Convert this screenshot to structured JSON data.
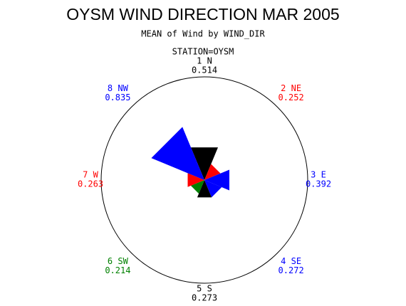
{
  "chart_data": {
    "type": "windrose",
    "title": "OYSM WIND DIRECTION MAR 2005",
    "subtitle": "MEAN of Wind by WIND_DIR",
    "station": "STATION=OYSM",
    "categories": [
      "1 N",
      "2 NE",
      "3 E",
      "4 SE",
      "5 S",
      "6 SW",
      "7 W",
      "8 NW"
    ],
    "values": [
      0.514,
      0.252,
      0.392,
      0.272,
      0.273,
      0.214,
      0.263,
      0.835
    ],
    "colors": [
      "#000000",
      "#ff0000",
      "#0000ff",
      "#0000ff",
      "#000000",
      "#008000",
      "#ff0000",
      "#0000ff"
    ],
    "rlim": [
      0,
      1.5
    ]
  }
}
